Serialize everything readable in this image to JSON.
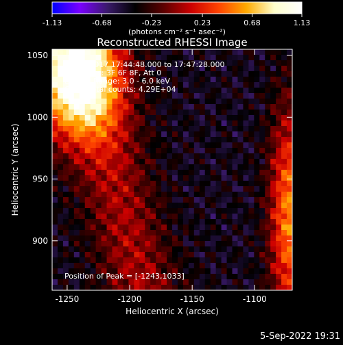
{
  "colorbar": {
    "tick_labels": [
      "-1.13",
      "-0.68",
      "-0.23",
      "0.23",
      "0.68",
      "1.13"
    ],
    "tick_values": [
      -1.13,
      -0.68,
      -0.23,
      0.23,
      0.68,
      1.13
    ],
    "unit_label": "(photons cm⁻² s⁻¹ asec⁻²)",
    "colors": [
      "#0000ff",
      "#7a00ff",
      "#3a1a6a",
      "#000000",
      "#5a0000",
      "#cc0000",
      "#ff4400",
      "#ffaa00",
      "#ffffcc",
      "#ffffff"
    ]
  },
  "chart_data": {
    "type": "heatmap",
    "title": "Reconstructed RHESSI Image",
    "xlabel": "Heliocentric X (arcsec)",
    "ylabel": "Heliocentric Y (arcsec)",
    "xlim": [
      -1262,
      -1070
    ],
    "ylim": [
      860,
      1055
    ],
    "x_ticks": [
      -1250,
      -1200,
      -1150,
      -1100
    ],
    "x_tick_labels": [
      "-1250",
      "-1200",
      "-1150",
      "-1100"
    ],
    "y_ticks": [
      900,
      950,
      1000,
      1050
    ],
    "y_tick_labels": [
      "900",
      "950",
      "1000",
      "1050"
    ],
    "info_lines": [
      "7-Dec-2017 17:44:48.000 to 17:47:28.000",
      "Detectors: 3F 6F 8F, Att 0",
      "Energy Range: 3.0 - 6.0 keV",
      "Clean    Total counts: 4.29E+04"
    ],
    "peak_label": "Position of Peak = [-1243,1033]",
    "peak": [
      -1243,
      1033
    ],
    "total_counts": 42900,
    "energy_range_kev": [
      3.0,
      6.0
    ]
  },
  "footer": {
    "timestamp": "5-Sep-2022 19:31"
  }
}
